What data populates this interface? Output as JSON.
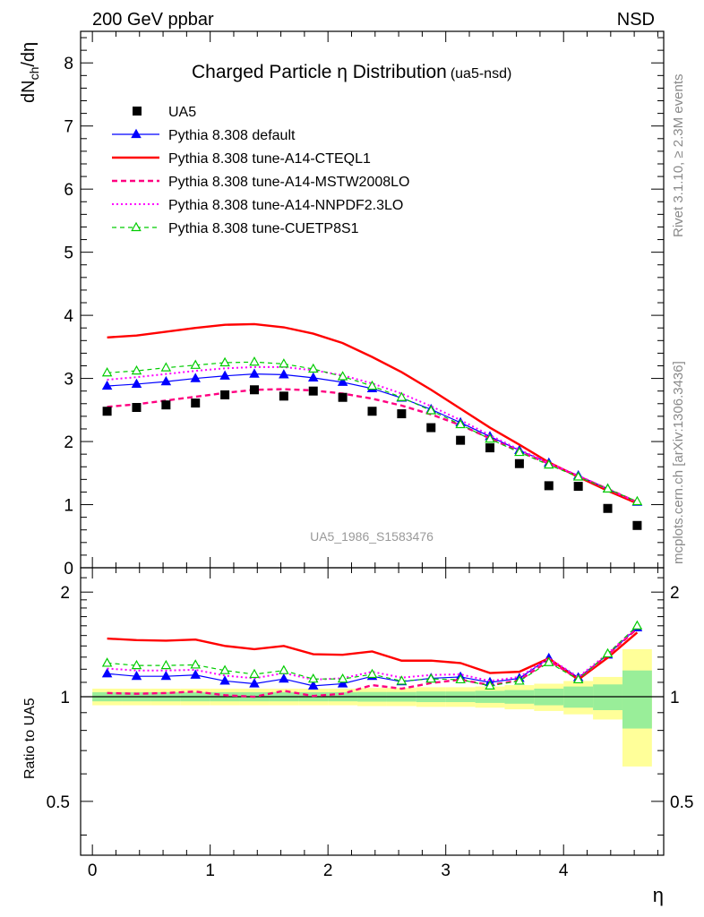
{
  "header": {
    "left": "200 GeV ppbar",
    "right": "NSD"
  },
  "side_labels": {
    "rivet": "Rivet 3.1.10, ≥ 2.3M events",
    "mcplots": "mcplots.cern.ch [arXiv:1306.3436]"
  },
  "chart_data": {
    "type": "scatter",
    "title": "Charged Particle η Distribution",
    "title_suffix": "(ua5-nsd)",
    "watermark": "UA5_1986_S1583476",
    "ylabel": "dNch/dη",
    "ylabel_parts": {
      "main": "dN",
      "sub": "ch",
      "tail": "/dη"
    },
    "xlabel": "η",
    "ratio_ylabel": "Ratio to UA5",
    "xlim": [
      -0.1,
      4.85
    ],
    "ylim": [
      0,
      8.5
    ],
    "ratio_ylim": [
      0.35,
      2.35
    ],
    "x_ticks": [
      "0",
      "1",
      "2",
      "3",
      "4"
    ],
    "y_ticks": [
      "0",
      "1",
      "2",
      "3",
      "4",
      "5",
      "6",
      "7",
      "8"
    ],
    "ratio_ticks_left": [
      "0.5",
      "1",
      "2"
    ],
    "ratio_ticks_right": [
      "0.5",
      "1",
      "2"
    ],
    "legend_placement": "top-left",
    "x": [
      0.125,
      0.375,
      0.625,
      0.875,
      1.125,
      1.375,
      1.625,
      1.875,
      2.125,
      2.375,
      2.625,
      2.875,
      3.125,
      3.375,
      3.625,
      3.875,
      4.125,
      4.375,
      4.625
    ],
    "data": {
      "name": "UA5",
      "values": [
        2.48,
        2.54,
        2.58,
        2.61,
        2.74,
        2.82,
        2.72,
        2.8,
        2.7,
        2.48,
        2.44,
        2.22,
        2.02,
        1.9,
        1.65,
        1.3,
        1.29,
        0.94,
        0.67
      ]
    },
    "series": [
      {
        "name": "Pythia 8.308 default",
        "color": "#0000ff",
        "values": [
          2.88,
          2.91,
          2.95,
          3.0,
          3.04,
          3.07,
          3.06,
          3.01,
          2.94,
          2.84,
          2.69,
          2.51,
          2.3,
          2.08,
          1.86,
          1.66,
          1.46,
          1.25,
          1.04
        ],
        "ratio": [
          1.165,
          1.145,
          1.145,
          1.155,
          1.11,
          1.09,
          1.125,
          1.075,
          1.09,
          1.145,
          1.105,
          1.13,
          1.14,
          1.1,
          1.13,
          1.29,
          1.135,
          1.32,
          1.58
        ]
      },
      {
        "name": "Pythia 8.308 tune-A14-CTEQL1",
        "color": "#ff0000",
        "values": [
          3.65,
          3.68,
          3.74,
          3.8,
          3.85,
          3.86,
          3.81,
          3.71,
          3.56,
          3.34,
          3.1,
          2.82,
          2.52,
          2.22,
          1.95,
          1.67,
          1.44,
          1.22,
          1.02
        ],
        "ratio": [
          1.47,
          1.455,
          1.45,
          1.46,
          1.4,
          1.37,
          1.4,
          1.325,
          1.32,
          1.35,
          1.27,
          1.27,
          1.25,
          1.17,
          1.18,
          1.29,
          1.12,
          1.295,
          1.53
        ]
      },
      {
        "name": "Pythia 8.308 tune-A14-MSTW2008LO",
        "color": "#ff0080",
        "values": [
          2.55,
          2.59,
          2.65,
          2.71,
          2.77,
          2.82,
          2.83,
          2.81,
          2.76,
          2.68,
          2.57,
          2.43,
          2.26,
          2.05,
          1.84,
          1.65,
          1.45,
          1.25,
          1.04
        ],
        "ratio": [
          1.025,
          1.02,
          1.025,
          1.035,
          1.01,
          1.0,
          1.04,
          1.005,
          1.02,
          1.08,
          1.055,
          1.095,
          1.12,
          1.08,
          1.115,
          1.27,
          1.125,
          1.32,
          1.57
        ]
      },
      {
        "name": "Pythia 8.308 tune-A14-NNPDF2.3LO",
        "color": "#ff00ff",
        "values": [
          2.98,
          3.02,
          3.07,
          3.12,
          3.16,
          3.18,
          3.18,
          3.13,
          3.05,
          2.92,
          2.76,
          2.56,
          2.34,
          2.1,
          1.87,
          1.66,
          1.46,
          1.25,
          1.04
        ],
        "ratio": [
          1.205,
          1.19,
          1.19,
          1.195,
          1.15,
          1.13,
          1.17,
          1.12,
          1.13,
          1.18,
          1.135,
          1.155,
          1.16,
          1.11,
          1.14,
          1.29,
          1.14,
          1.33,
          1.59
        ]
      },
      {
        "name": "Pythia 8.308 tune-CUETP8S1",
        "color": "#00cc00",
        "values": [
          3.09,
          3.12,
          3.17,
          3.21,
          3.25,
          3.26,
          3.23,
          3.15,
          3.03,
          2.88,
          2.7,
          2.49,
          2.27,
          2.04,
          1.83,
          1.63,
          1.44,
          1.25,
          1.05
        ],
        "ratio": [
          1.25,
          1.23,
          1.23,
          1.235,
          1.19,
          1.16,
          1.19,
          1.125,
          1.125,
          1.16,
          1.11,
          1.125,
          1.12,
          1.075,
          1.11,
          1.255,
          1.12,
          1.33,
          1.6
        ]
      }
    ],
    "ratio_bands": {
      "yellow_half_width": [
        0.055,
        0.055,
        0.055,
        0.055,
        0.055,
        0.055,
        0.055,
        0.055,
        0.055,
        0.06,
        0.06,
        0.065,
        0.065,
        0.07,
        0.08,
        0.09,
        0.11,
        0.14,
        0.37
      ],
      "green_half_width": [
        0.03,
        0.03,
        0.03,
        0.03,
        0.03,
        0.03,
        0.03,
        0.03,
        0.03,
        0.032,
        0.032,
        0.035,
        0.035,
        0.04,
        0.045,
        0.055,
        0.07,
        0.085,
        0.19
      ]
    }
  }
}
